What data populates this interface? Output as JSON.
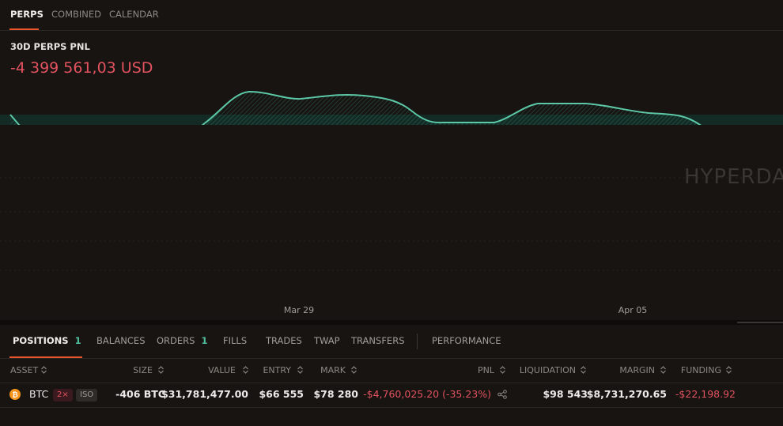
{
  "top_tabs": [
    "PERPS",
    "COMBINED",
    "CALENDAR"
  ],
  "pnl": {
    "title": "30D PERPS PNL",
    "value": "-4 399 561,03 USD",
    "watermark": "HYPERDA",
    "x_labels": [
      "Mar 29",
      "Apr 05"
    ]
  },
  "bottom_tabs": [
    {
      "label": "POSITIONS",
      "badge": "1"
    },
    {
      "label": "BALANCES"
    },
    {
      "label": "ORDERS",
      "badge": "1"
    },
    {
      "label": "FILLS"
    },
    {
      "label": "TRADES"
    },
    {
      "label": "TWAP"
    },
    {
      "label": "TRANSFERS"
    },
    {
      "label": "PERFORMANCE"
    }
  ],
  "table": {
    "columns": [
      "ASSET",
      "SIZE",
      "VALUE",
      "ENTRY",
      "MARK",
      "PNL",
      "LIQUIDATION",
      "MARGIN",
      "FUNDING"
    ],
    "rows": [
      {
        "asset": "BTC",
        "leverage": "2×",
        "margin_mode": "ISO",
        "cells": [
          "-406 BTC",
          "$31,781,477.00",
          "$66 555",
          "$78 280",
          "-$4,760,025.20 (-35.23%)",
          "$98 543",
          "$8,731,270.65",
          "-$22,198.92"
        ]
      }
    ]
  }
}
